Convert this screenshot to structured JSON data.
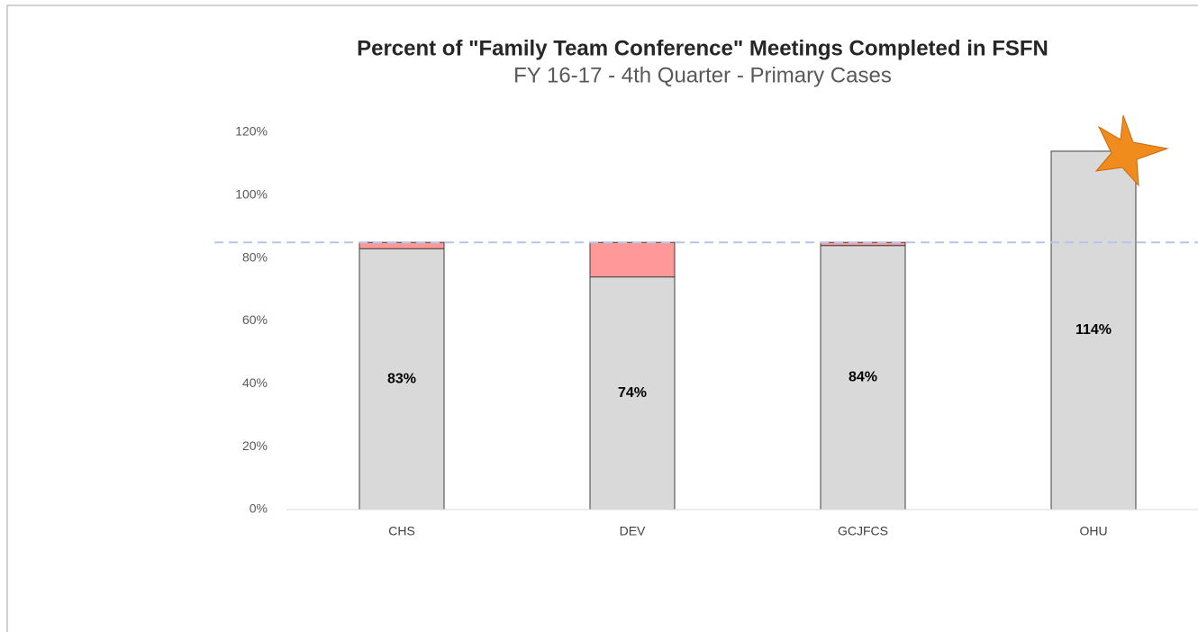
{
  "chart_data": {
    "type": "stacked_bar",
    "title": "Percent of \"Family Team Conference\" Meetings Completed in FSFN",
    "subtitle": "FY 16-17 - 4th Quarter - Primary Cases",
    "categories": [
      "CHS",
      "DEV",
      "GCJFCS",
      "OHU"
    ],
    "series": [
      {
        "color": "#d9d9d9",
        "values": [
          83,
          74,
          84,
          114
        ],
        "value_labels": [
          "83%",
          "74%",
          "84%",
          "114%"
        ]
      },
      {
        "color": "#ff9999",
        "values": [
          2,
          11,
          1,
          0
        ]
      }
    ],
    "target": 85,
    "target_color": "#b4c7e7",
    "ylim": [
      0,
      120
    ],
    "yticks": [
      {
        "value": 0,
        "label": "0%"
      },
      {
        "value": 20,
        "label": "20%"
      },
      {
        "value": 40,
        "label": "40%"
      },
      {
        "value": 60,
        "label": "60%"
      },
      {
        "value": 80,
        "label": "80%"
      },
      {
        "value": 100,
        "label": "100%"
      },
      {
        "value": 120,
        "label": "120%"
      }
    ]
  }
}
